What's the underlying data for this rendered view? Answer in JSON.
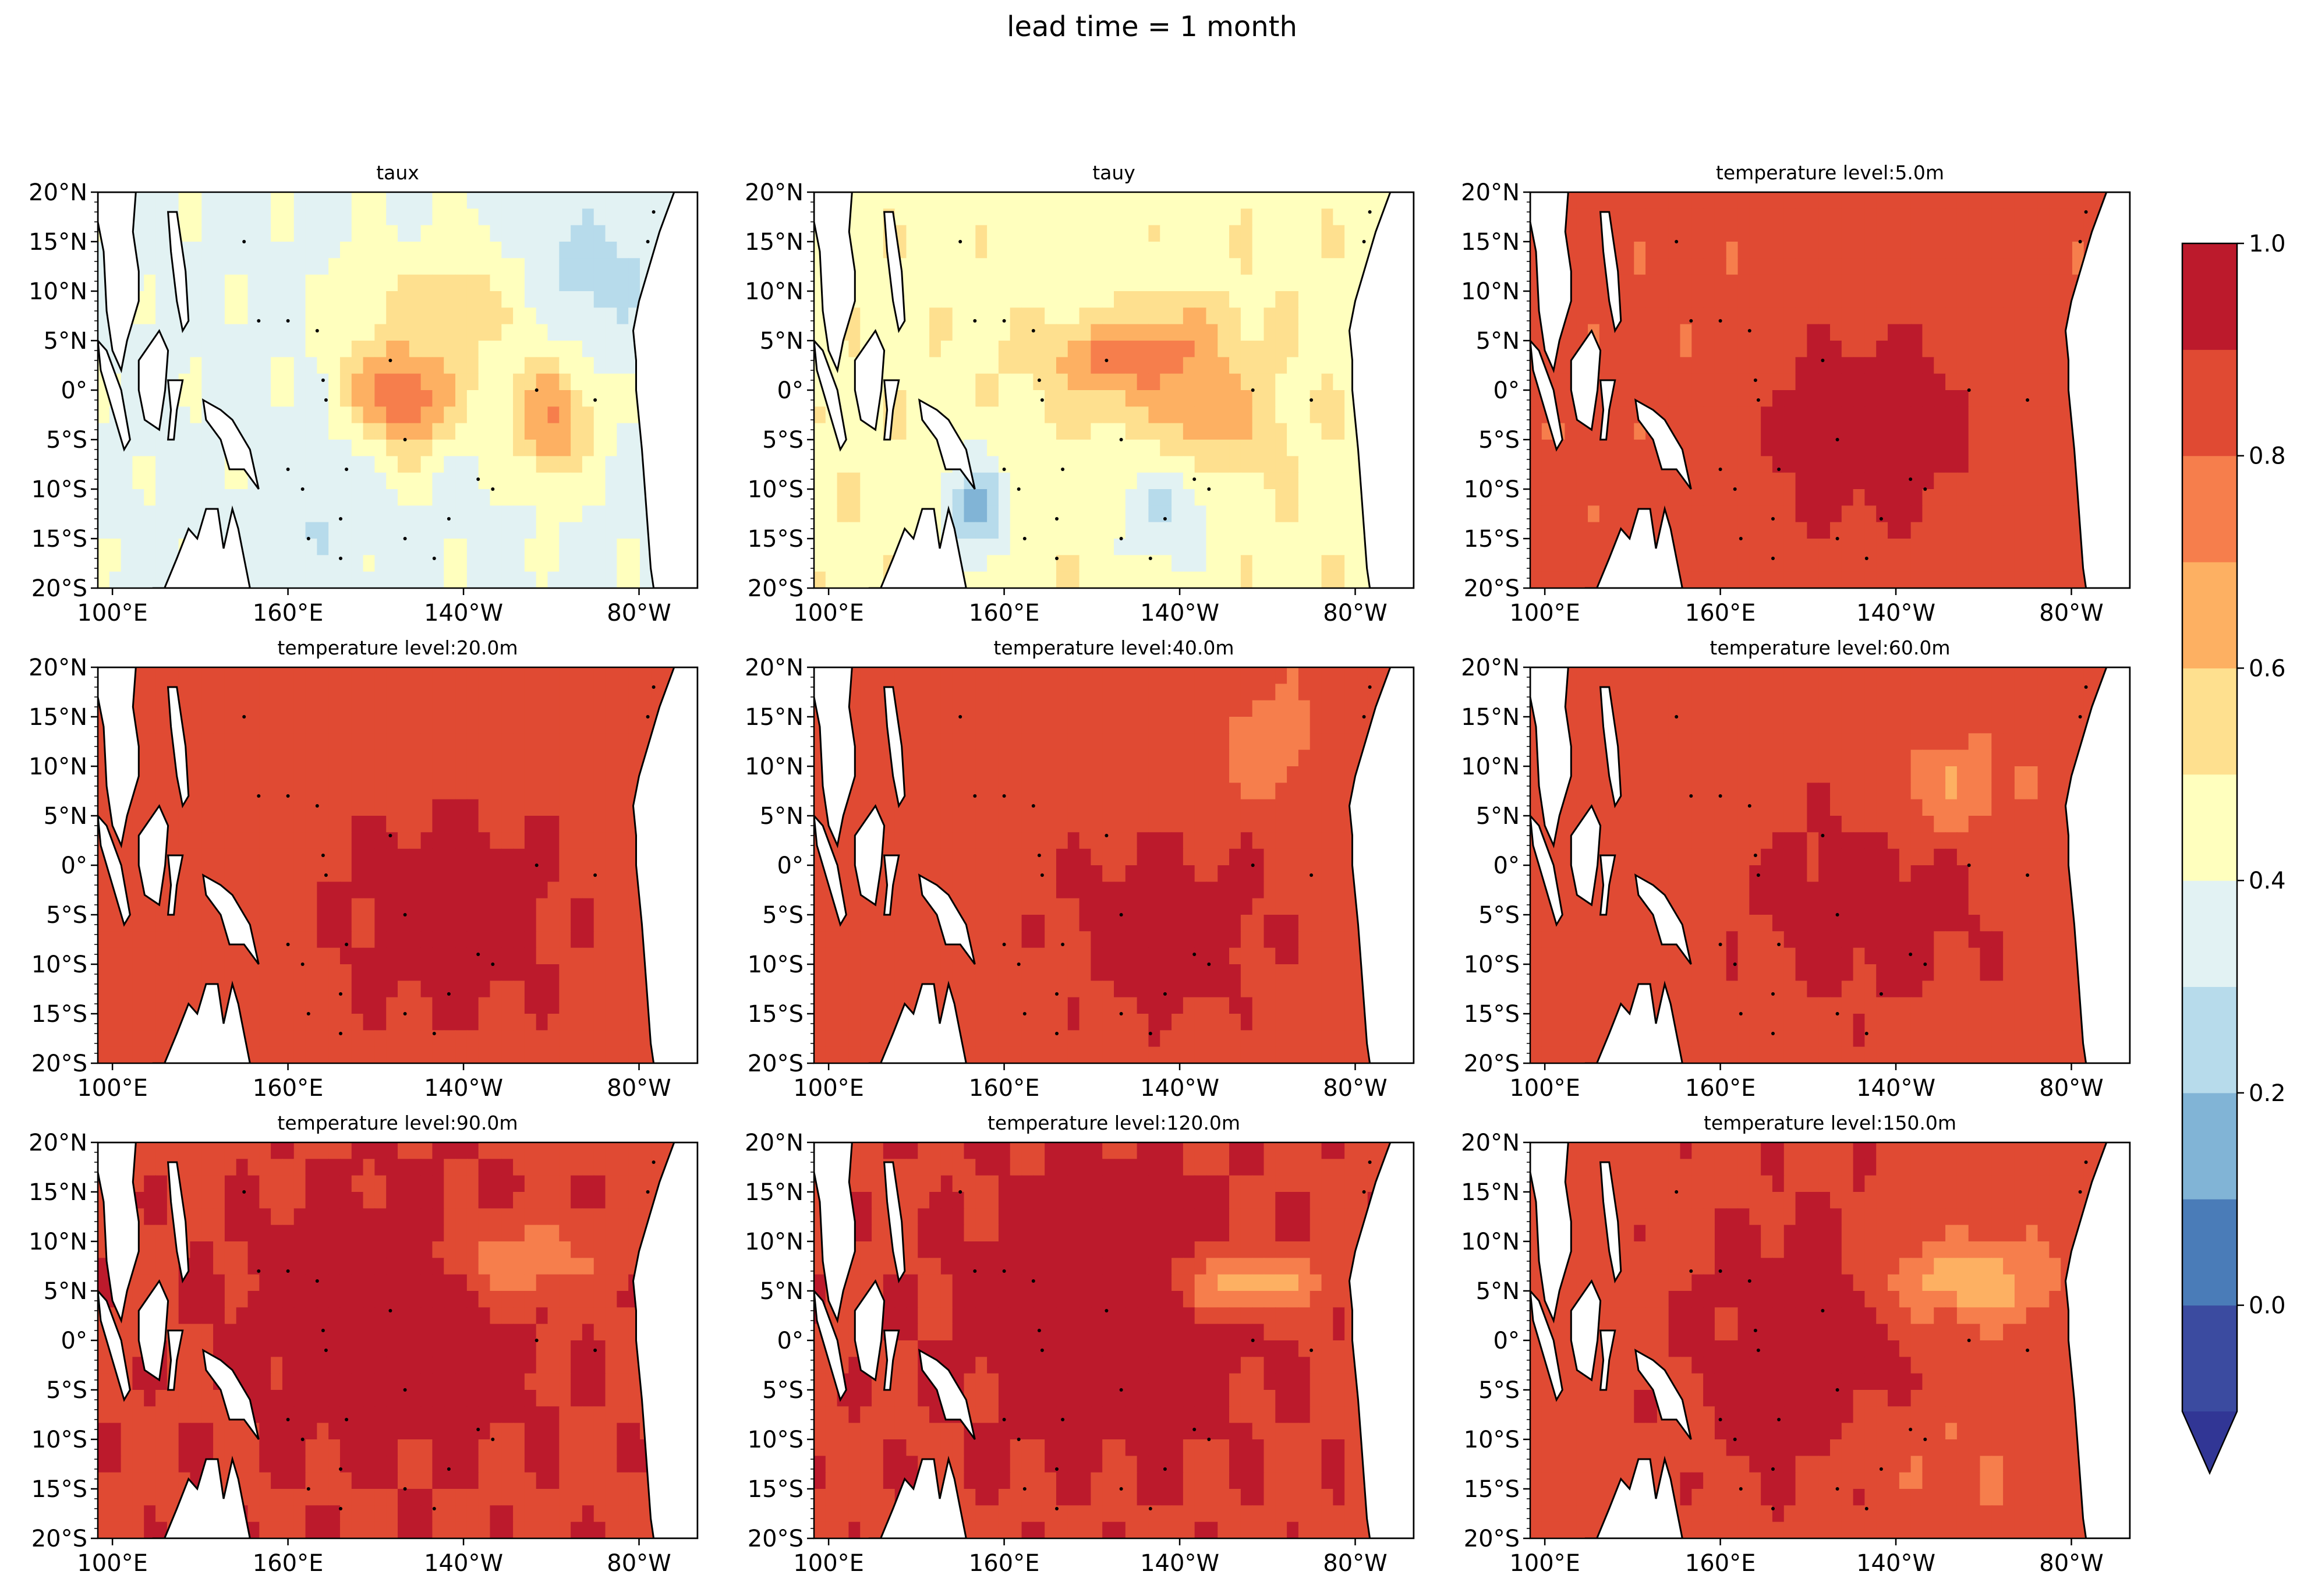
{
  "figure": {
    "title": "lead time = 1 month"
  },
  "axes": {
    "lat_ticks": [
      "20°N",
      "15°N",
      "10°N",
      "5°N",
      "0°",
      "5°S",
      "10°S",
      "15°S",
      "20°S"
    ],
    "lat_values": [
      20,
      15,
      10,
      5,
      0,
      -5,
      -10,
      -15,
      -20
    ],
    "lon_ticks": [
      "100°E",
      "160°E",
      "140°W",
      "80°W"
    ],
    "lon_values": [
      100,
      160,
      220,
      280
    ],
    "lon_range": [
      95,
      300
    ],
    "lat_range": [
      -20,
      20
    ]
  },
  "panels": [
    {
      "title": "taux",
      "field": "taux"
    },
    {
      "title": "tauy",
      "field": "tauy"
    },
    {
      "title": "temperature level:5.0m",
      "field": "temp",
      "depth": 5
    },
    {
      "title": "temperature level:20.0m",
      "field": "temp",
      "depth": 20
    },
    {
      "title": "temperature level:40.0m",
      "field": "temp",
      "depth": 40
    },
    {
      "title": "temperature level:60.0m",
      "field": "temp",
      "depth": 60
    },
    {
      "title": "temperature level:90.0m",
      "field": "temp",
      "depth": 90
    },
    {
      "title": "temperature level:120.0m",
      "field": "temp",
      "depth": 120
    },
    {
      "title": "temperature level:150.0m",
      "field": "temp",
      "depth": 150
    }
  ],
  "colorbar": {
    "colormap": "RdYlBu_r",
    "levels": [
      -0.1,
      0.0,
      0.1,
      0.2,
      0.3,
      0.4,
      0.5,
      0.6,
      0.7,
      0.8,
      0.9,
      1.0
    ],
    "colors": [
      "#3b4ba0",
      "#4a7cb8",
      "#81b4d6",
      "#b7dbeb",
      "#e2f2f3",
      "#ffffbe",
      "#fee08f",
      "#fdb062",
      "#f67e4c",
      "#e04a33",
      "#bc1a2c"
    ],
    "extend_color": "#313695",
    "tick_labels": [
      "1.0",
      "0.8",
      "0.6",
      "0.4",
      "0.2",
      "0.0"
    ],
    "tick_values": [
      1.0,
      0.8,
      0.6,
      0.4,
      0.2,
      0.0
    ],
    "extend": "min"
  },
  "chart_data": {
    "type": "heatmap",
    "title": "lead time = 1 month",
    "xlabel": "",
    "ylabel": "",
    "xlim": [
      95,
      300
    ],
    "ylim": [
      -20,
      20
    ],
    "vlim": [
      -0.1,
      1.0
    ],
    "panels": [
      {
        "title": "taux",
        "features": [
          {
            "lon": 200,
            "lat": 0,
            "value": 0.85,
            "sx": 18,
            "sy": 6
          },
          {
            "lon": 250,
            "lat": -3,
            "value": 0.7,
            "sx": 14,
            "sy": 6
          },
          {
            "lon": 215,
            "lat": 8,
            "value": 0.55,
            "sx": 30,
            "sy": 7
          },
          {
            "lon": 170,
            "lat": -12,
            "value": 0.3,
            "sx": 18,
            "sy": 6
          },
          {
            "lon": 265,
            "lat": 12,
            "value": 0.25,
            "sx": 20,
            "sy": 6
          }
        ],
        "base": 0.38
      },
      {
        "title": "tauy",
        "features": [
          {
            "lon": 205,
            "lat": 4,
            "value": 0.82,
            "sx": 28,
            "sy": 5
          },
          {
            "lon": 230,
            "lat": -3,
            "value": 0.68,
            "sx": 20,
            "sy": 5
          },
          {
            "lon": 190,
            "lat": 12,
            "value": 0.45,
            "sx": 30,
            "sy": 6
          },
          {
            "lon": 150,
            "lat": -12,
            "value": 0.2,
            "sx": 12,
            "sy": 6
          },
          {
            "lon": 215,
            "lat": -13,
            "value": 0.3,
            "sx": 18,
            "sy": 6
          }
        ],
        "base": 0.48
      },
      {
        "title": "temperature level:5.0m",
        "features": [
          {
            "lon": 210,
            "lat": -4,
            "value": 0.97,
            "sx": 42,
            "sy": 11
          },
          {
            "lon": 150,
            "lat": 10,
            "value": 0.83,
            "sx": 30,
            "sy": 14
          }
        ],
        "base": 0.83
      },
      {
        "title": "temperature level:20.0m",
        "features": [
          {
            "lon": 215,
            "lat": -5,
            "value": 0.97,
            "sx": 44,
            "sy": 12
          }
        ],
        "base": 0.84
      },
      {
        "title": "temperature level:40.0m",
        "features": [
          {
            "lon": 215,
            "lat": -6,
            "value": 0.96,
            "sx": 42,
            "sy": 10
          },
          {
            "lon": 250,
            "lat": 12,
            "value": 0.72,
            "sx": 14,
            "sy": 5
          }
        ],
        "base": 0.84
      },
      {
        "title": "temperature level:60.0m",
        "features": [
          {
            "lon": 210,
            "lat": -4,
            "value": 0.96,
            "sx": 42,
            "sy": 10
          },
          {
            "lon": 240,
            "lat": 8,
            "value": 0.72,
            "sx": 22,
            "sy": 5
          }
        ],
        "base": 0.85
      },
      {
        "title": "temperature level:90.0m",
        "features": [
          {
            "lon": 195,
            "lat": 2,
            "value": 0.98,
            "sx": 50,
            "sy": 14
          },
          {
            "lon": 240,
            "lat": 8,
            "value": 0.72,
            "sx": 24,
            "sy": 4
          }
        ],
        "base": 0.88
      },
      {
        "title": "temperature level:120.0m",
        "features": [
          {
            "lon": 195,
            "lat": 3,
            "value": 0.98,
            "sx": 50,
            "sy": 14
          },
          {
            "lon": 245,
            "lat": 6,
            "value": 0.65,
            "sx": 24,
            "sy": 3
          }
        ],
        "base": 0.88
      },
      {
        "title": "temperature level:150.0m",
        "features": [
          {
            "lon": 190,
            "lat": 0,
            "value": 0.97,
            "sx": 40,
            "sy": 14
          },
          {
            "lon": 245,
            "lat": 6,
            "value": 0.62,
            "sx": 28,
            "sy": 4
          },
          {
            "lon": 240,
            "lat": -12,
            "value": 0.8,
            "sx": 30,
            "sy": 6
          }
        ],
        "base": 0.86
      }
    ]
  }
}
